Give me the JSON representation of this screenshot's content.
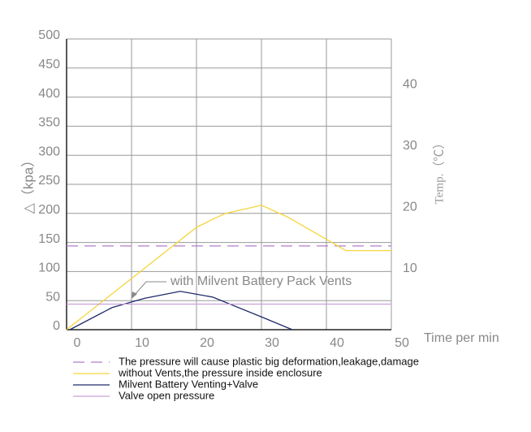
{
  "chart_data": {
    "type": "line",
    "xlabel": "Time per min",
    "ylabel": "△（kpa）",
    "y2label": "Temp.（℃）",
    "annotation": "with Milvent Battery Pack Vents",
    "xlim": [
      0,
      50
    ],
    "xticks": [
      0,
      10,
      20,
      30,
      40,
      50
    ],
    "ylim": [
      0,
      500
    ],
    "yticks": [
      0,
      50,
      100,
      150,
      200,
      250,
      300,
      350,
      400,
      450,
      500
    ],
    "y2lim": [
      0,
      47.5
    ],
    "y2ticks": [
      10,
      20,
      30,
      40
    ],
    "grid": true,
    "series": [
      {
        "name": "The pressure will cause plastic big deformation,leakage,damage",
        "color": "#b57bc9",
        "style": "dashed",
        "x": [
          0,
          50
        ],
        "values": [
          144,
          144
        ]
      },
      {
        "name": "without Vents,the pressure inside enclosure",
        "color": "#f5d63c",
        "style": "solid",
        "x": [
          0,
          20,
          22.5,
          24.5,
          30,
          34,
          43,
          50
        ],
        "values": [
          0,
          176,
          190,
          200,
          214,
          194,
          136,
          136
        ]
      },
      {
        "name": "Milvent Battery Venting+Valve",
        "color": "#1f2a6b",
        "style": "solid",
        "x": [
          0.5,
          7,
          12,
          17.5,
          22.5,
          30,
          34.75
        ],
        "values": [
          0,
          38,
          54,
          66,
          56,
          22,
          0
        ]
      },
      {
        "name": "Valve open pressure",
        "color": "#c9a0d6",
        "style": "solid",
        "x": [
          0,
          50
        ],
        "values": [
          44,
          44
        ]
      }
    ]
  }
}
